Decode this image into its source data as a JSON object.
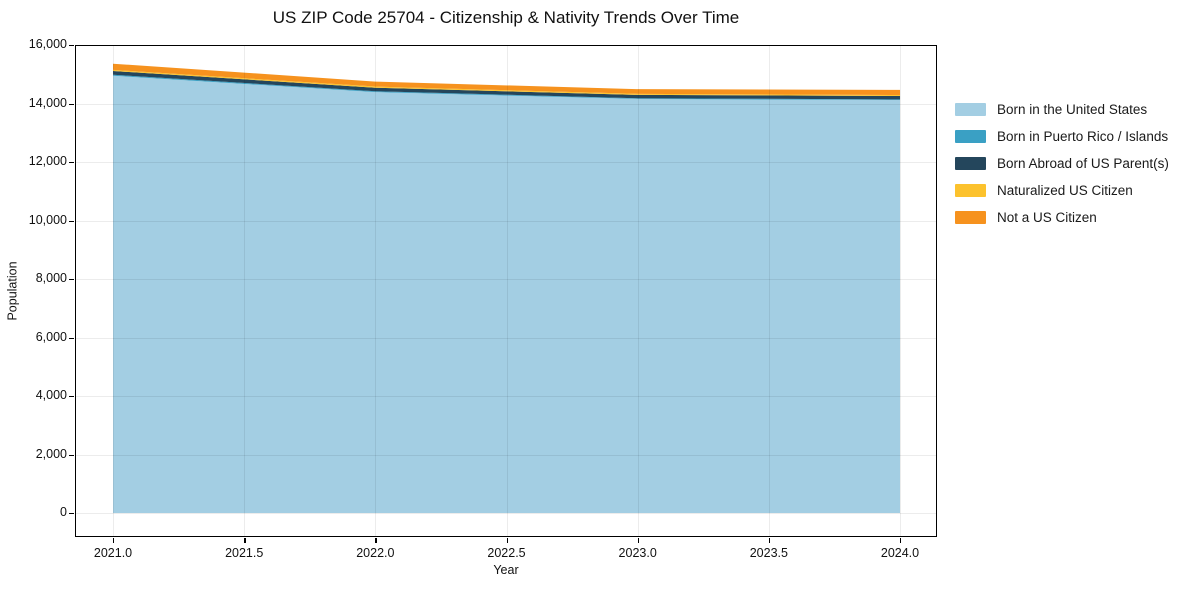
{
  "chart_data": {
    "type": "area",
    "stacked": true,
    "title": "US ZIP Code 25704 - Citizenship & Nativity Trends Over Time",
    "xlabel": "Year",
    "ylabel": "Population",
    "x": [
      2021,
      2022,
      2023,
      2024
    ],
    "series": [
      {
        "name": "Born in the United States",
        "color": "#a3cee3",
        "values": [
          14950,
          14390,
          14155,
          14120
        ]
      },
      {
        "name": "Born in Puerto Rico / Islands",
        "color": "#3aa0c4",
        "values": [
          35,
          30,
          25,
          20
        ]
      },
      {
        "name": "Born Abroad of US Parent(s)",
        "color": "#24465c",
        "values": [
          125,
          120,
          115,
          115
        ]
      },
      {
        "name": "Naturalized US Citizen",
        "color": "#fcc22d",
        "values": [
          40,
          40,
          35,
          35
        ]
      },
      {
        "name": "Not a US Citizen",
        "color": "#f6921e",
        "values": [
          210,
          170,
          160,
          175
        ]
      }
    ],
    "xticks": {
      "values": [
        2021.0,
        2021.5,
        2022.0,
        2022.5,
        2023.0,
        2023.5,
        2024.0
      ],
      "labels": [
        "2021.0",
        "2021.5",
        "2022.0",
        "2022.5",
        "2023.0",
        "2023.5",
        "2024.0"
      ]
    },
    "yticks": {
      "values": [
        0,
        2000,
        4000,
        6000,
        8000,
        10000,
        12000,
        14000,
        16000
      ],
      "labels": [
        "0",
        "2,000",
        "4,000",
        "6,000",
        "8,000",
        "10,000",
        "12,000",
        "14,000",
        "16,000"
      ]
    },
    "xlim": [
      2020.855,
      2024.141
    ],
    "ylim": [
      -820,
      16000
    ],
    "grid": true,
    "legend_position": "right"
  }
}
